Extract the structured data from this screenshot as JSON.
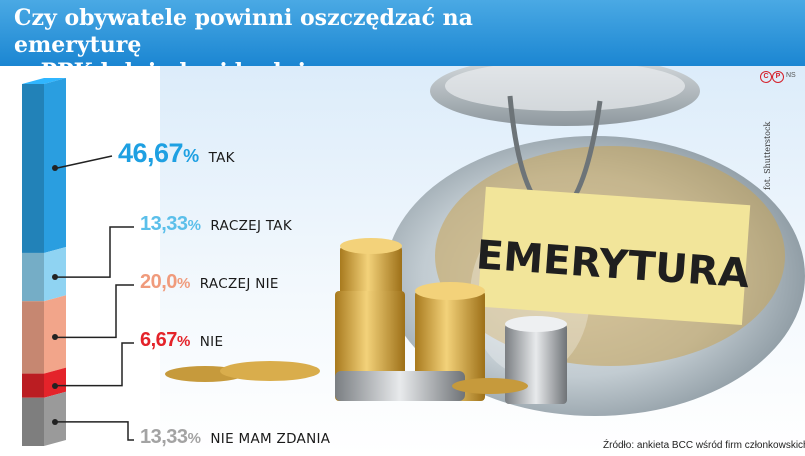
{
  "title_line1": "Czy obywatele powinni oszczędzać na emeryturę",
  "title_line2": "w PPK lub indywidualnie",
  "photo": {
    "jar_label": "EMERYTURA",
    "credit": "fot. Shutterstock",
    "copyright_mark": "NS"
  },
  "source": "Źródło: ankieta BCC wśród firm członkowskich",
  "chart_data": {
    "type": "bar",
    "stacked": true,
    "title": "Czy obywatele powinni oszczędzać na emeryturę w PPK lub indywidualnie",
    "categories": [
      "TAK",
      "RACZEJ TAK",
      "RACZEJ NIE",
      "NIE",
      "NIE MAM ZDANIA"
    ],
    "values": [
      46.67,
      13.33,
      20.0,
      6.67,
      13.33
    ],
    "labels": [
      "46,67%",
      "13,33%",
      "20,0%",
      "6,67%",
      "13,33%"
    ],
    "colors": [
      "#2a9ee0",
      "#8fd3f2",
      "#f2a58a",
      "#e4232a",
      "#9a9a9a"
    ],
    "label_colors": [
      "#1ea0e2",
      "#5bbfea",
      "#f09b7c",
      "#e4232a",
      "#a3a3a3"
    ],
    "unit": "%"
  }
}
